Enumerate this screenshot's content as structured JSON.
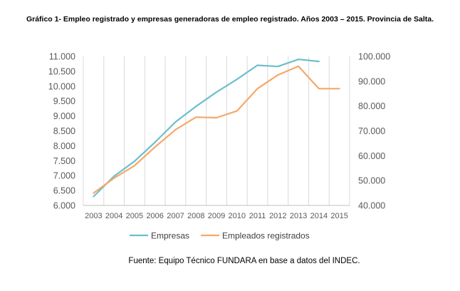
{
  "figure": {
    "title": "Gráfico 1- Empleo registrado y empresas generadoras de empleo registrado. Años 2003 – 2015. Provincia de Salta.",
    "source": "Fuente:  Equipo  Técnico  FUNDARA  en  base  a  datos  del  INDEC."
  },
  "chart_data": {
    "type": "line",
    "title": "",
    "xlabel": "",
    "ylabel": "",
    "categories": [
      "2003",
      "2004",
      "2005",
      "2006",
      "2007",
      "2008",
      "2009",
      "2010",
      "2011",
      "2012",
      "2013",
      "2014",
      "2015"
    ],
    "series": [
      {
        "name": "Empresas",
        "axis": "left",
        "color": "#6cbfcb",
        "values": [
          6300,
          6980,
          7480,
          8120,
          8800,
          9320,
          9800,
          10230,
          10700,
          10660,
          10900,
          10830,
          null
        ]
      },
      {
        "name": "Empleados  registrados",
        "axis": "right",
        "color": "#f5a86a",
        "values": [
          45000,
          51000,
          56000,
          63500,
          70500,
          75500,
          75300,
          78000,
          87000,
          92500,
          96000,
          87000,
          87000
        ]
      }
    ],
    "y_left": {
      "ylim": [
        6000,
        11000
      ],
      "ticks": [
        "6.000",
        "6.500",
        "7.000",
        "7.500",
        "8.000",
        "8.500",
        "9.000",
        "9.500",
        "10.000",
        "10.500",
        "11.000"
      ]
    },
    "y_right": {
      "ylim": [
        40000,
        100000
      ],
      "ticks": [
        "40.000",
        "50.000",
        "60.000",
        "70.000",
        "80.000",
        "90.000",
        "100.000"
      ]
    },
    "grid": "vertical",
    "legend": "bottom"
  }
}
